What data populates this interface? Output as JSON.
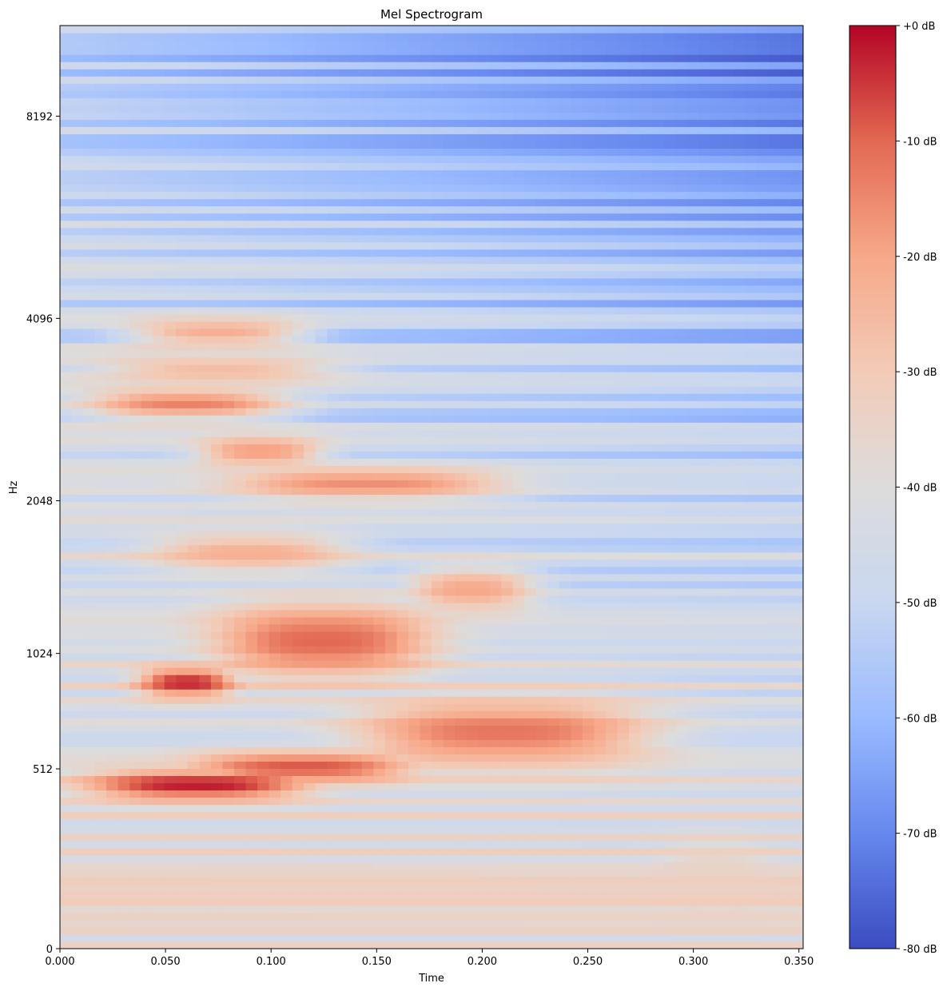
{
  "chart_data": {
    "type": "heatmap",
    "title": "Mel Spectrogram",
    "xlabel": "Time",
    "ylabel": "Hz",
    "x_ticks": [
      "0.000",
      "0.050",
      "0.100",
      "0.150",
      "0.200",
      "0.250",
      "0.300",
      "0.350"
    ],
    "x_tick_values": [
      0,
      0.05,
      0.1,
      0.15,
      0.2,
      0.25,
      0.3,
      0.35
    ],
    "xlim": [
      0,
      0.352
    ],
    "y_ticks": [
      "0",
      "512",
      "1024",
      "2048",
      "4096",
      "8192"
    ],
    "y_tick_values": [
      0,
      512,
      1024,
      2048,
      4096,
      8192
    ],
    "y_scale": "mel",
    "colorbar": {
      "label_format": "dB",
      "ticks": [
        "+0 dB",
        "-10 dB",
        "-20 dB",
        "-30 dB",
        "-40 dB",
        "-50 dB",
        "-60 dB",
        "-70 dB",
        "-80 dB"
      ],
      "tick_values": [
        0,
        -10,
        -20,
        -30,
        -40,
        -50,
        -60,
        -70,
        -80
      ],
      "range": [
        -80,
        0
      ],
      "colormap": "coolwarm",
      "colormap_stops": [
        "#3b4cc0",
        "#6788ee",
        "#9abbff",
        "#c9d7f0",
        "#dddcdc",
        "#f2cbb7",
        "#f7a889",
        "#e26952",
        "#b40426"
      ]
    },
    "features": [
      {
        "band_hz": [
          440,
          470
        ],
        "t": [
          0.02,
          0.11
        ],
        "db": -2
      },
      {
        "band_hz": [
          480,
          560
        ],
        "t": [
          0.07,
          0.16
        ],
        "db": -8
      },
      {
        "band_hz": [
          560,
          760
        ],
        "t": [
          0.15,
          0.27
        ],
        "db": -12
      },
      {
        "band_hz": [
          860,
          900
        ],
        "t": [
          0.04,
          0.08
        ],
        "db": -3
      },
      {
        "band_hz": [
          950,
          1250
        ],
        "t": [
          0.08,
          0.17
        ],
        "db": -10
      },
      {
        "band_hz": [
          1300,
          1500
        ],
        "t": [
          0.17,
          0.22
        ],
        "db": -20
      },
      {
        "band_hz": [
          1550,
          1750
        ],
        "t": [
          0.05,
          0.13
        ],
        "db": -22
      },
      {
        "band_hz": [
          2100,
          2300
        ],
        "t": [
          0.09,
          0.2
        ],
        "db": -16
      },
      {
        "band_hz": [
          2400,
          2600
        ],
        "t": [
          0.07,
          0.12
        ],
        "db": -18
      },
      {
        "band_hz": [
          2900,
          3100
        ],
        "t": [
          0.02,
          0.1
        ],
        "db": -14
      },
      {
        "band_hz": [
          3300,
          3500
        ],
        "t": [
          0.03,
          0.12
        ],
        "db": -26
      },
      {
        "band_hz": [
          3800,
          4000
        ],
        "t": [
          0.04,
          0.11
        ],
        "db": -22
      },
      {
        "band_hz": [
          120,
          250
        ],
        "t": [
          0.29,
          0.33
        ],
        "db": -34
      }
    ]
  }
}
